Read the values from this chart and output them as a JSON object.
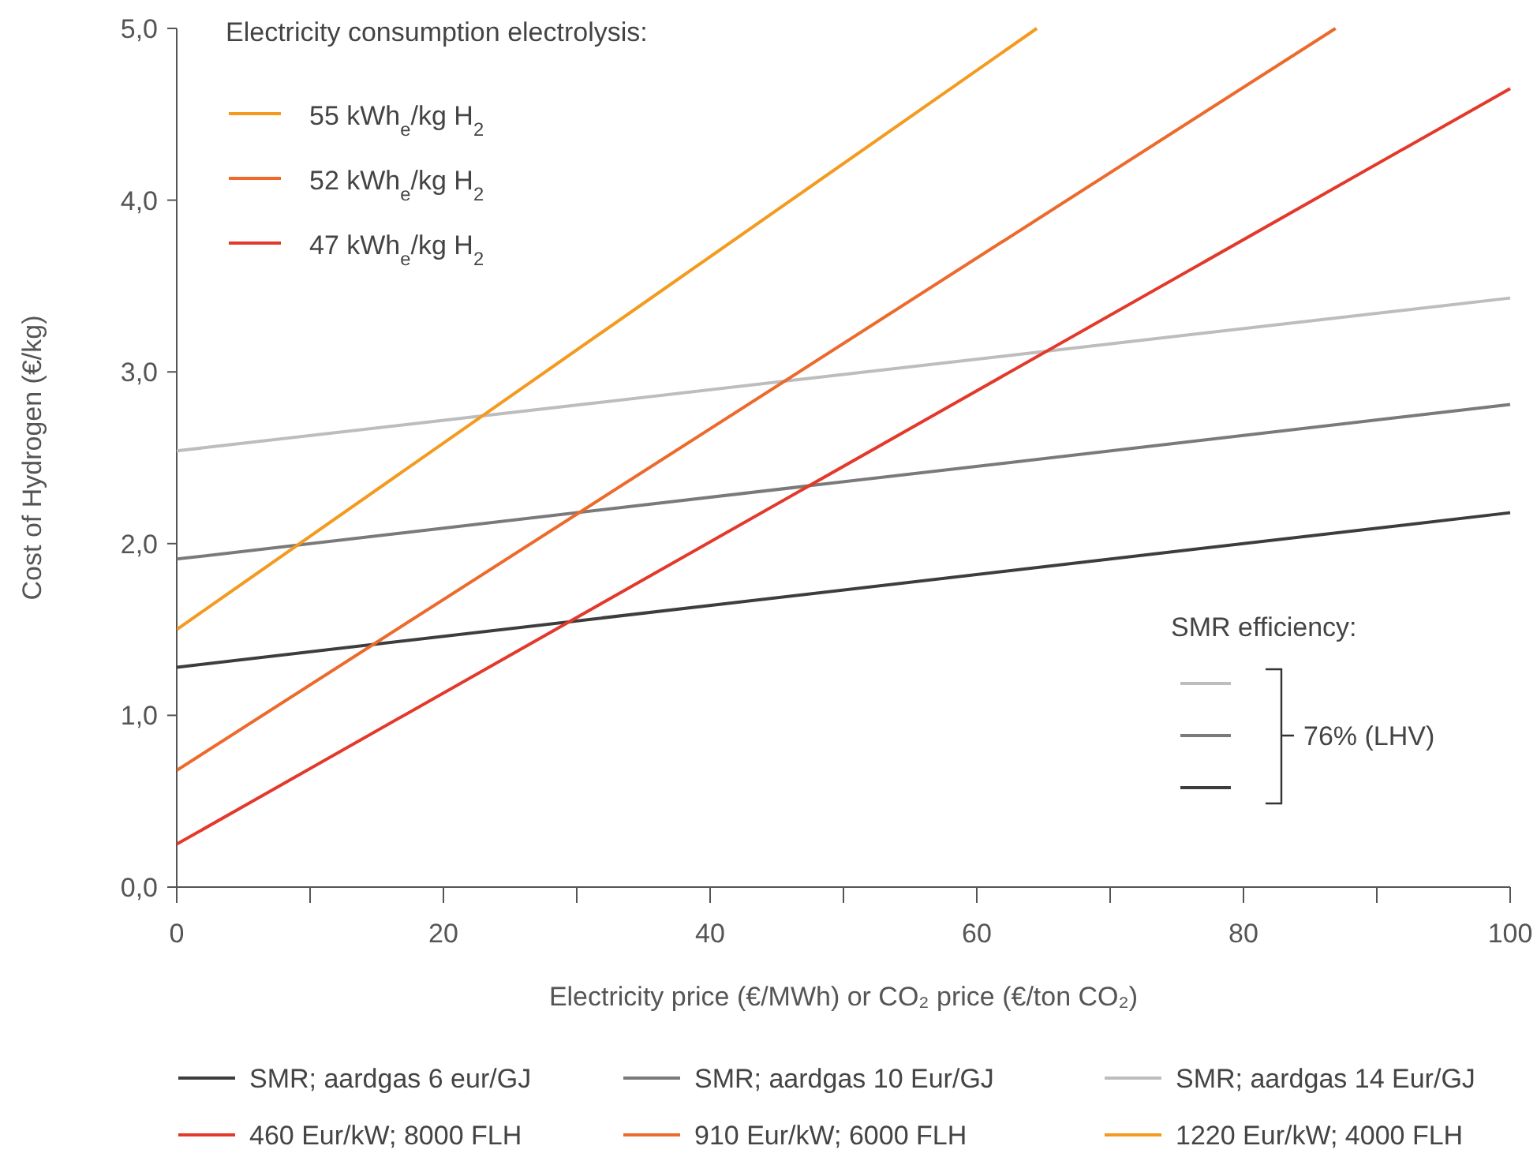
{
  "chart_data": {
    "type": "line",
    "xlabel": "Electricity price (€/MWh) or CO₂ price (€/ton CO₂)",
    "ylabel": "Cost of Hydrogen (€/kg)",
    "x": [
      0,
      100
    ],
    "series": [
      {
        "name": "SMR; aardgas 6 eur/GJ",
        "color": "#3d3d3d",
        "values": [
          1.28,
          2.18
        ]
      },
      {
        "name": "SMR; aardgas 10 Eur/GJ",
        "color": "#7a7a7a",
        "values": [
          1.91,
          2.81
        ]
      },
      {
        "name": "SMR; aardgas 14 Eur/GJ",
        "color": "#bdbdbd",
        "values": [
          2.54,
          3.43
        ]
      },
      {
        "name": "460 Eur/kW; 8000 FLH",
        "color": "#e3392a",
        "values": [
          0.25,
          4.65
        ]
      },
      {
        "name": "910 Eur/kW; 6000 FLH",
        "color": "#ec6a2c",
        "x": [
          0,
          86.9
        ],
        "values": [
          0.68,
          5.0
        ]
      },
      {
        "name": "1220 Eur/kW; 4000 FLH",
        "color": "#f39a1f",
        "x": [
          0,
          64.5
        ],
        "values": [
          1.5,
          5.0
        ]
      }
    ],
    "xlim": [
      0,
      100
    ],
    "ylim": [
      0,
      5
    ],
    "xticks": [
      0,
      {
        "value": 10,
        "label": null
      },
      20,
      {
        "value": 30,
        "label": null
      },
      40,
      {
        "value": 50,
        "label": null
      },
      60,
      {
        "value": 70,
        "label": null
      },
      80,
      {
        "value": 90,
        "label": null
      },
      100
    ],
    "yticks": [
      {
        "value": 0,
        "label": "0,0"
      },
      {
        "value": 1,
        "label": "1,0"
      },
      {
        "value": 2,
        "label": "2,0"
      },
      {
        "value": 3,
        "label": "3,0"
      },
      {
        "value": 4,
        "label": "4,0"
      },
      {
        "value": 5,
        "label": "5,0"
      }
    ],
    "grid": false,
    "legend": "bottom",
    "marker": "none",
    "line_style": "solid",
    "annotations": [
      "Electricity consumption electrolysis:",
      "55 kWh$_{e}$/kg H$_{2}$",
      "52 kWh$_{e}$/kg H$_{2}$",
      "47 kWh$_{e}$/kg H$_{2}$",
      "SMR efficiency:",
      "76% (LHV)"
    ]
  }
}
